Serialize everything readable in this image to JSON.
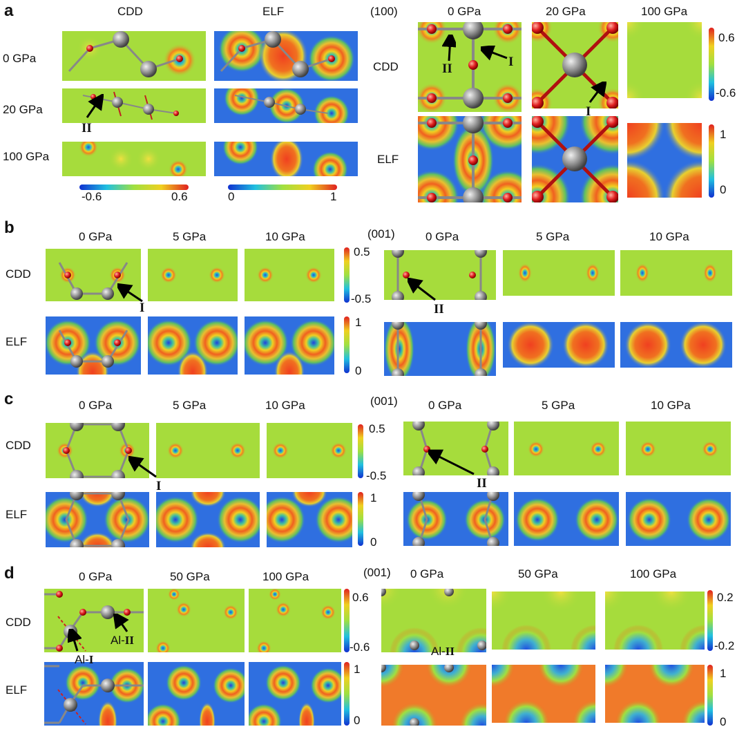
{
  "panels": {
    "a": {
      "letter": "a",
      "left_cols": [
        "CDD",
        "ELF"
      ],
      "left_rows": [
        "0 GPa",
        "20 GPa",
        "100 GPa"
      ],
      "cbar_cdd": {
        "min": "-0.6",
        "max": "0.6"
      },
      "cbar_elf": {
        "min": "0",
        "max": "1"
      },
      "right_plane": "(100)",
      "right_cols": [
        "0 GPa",
        "20 GPa",
        "100 GPa"
      ],
      "right_rows": [
        "CDD",
        "ELF"
      ],
      "right_cbar_cdd": {
        "max": "0.6",
        "min": "-0.6"
      },
      "right_cbar_elf": {
        "max": "1",
        "min": "0"
      },
      "marks": {
        "II_top": "II",
        "I_top": "I",
        "I_20": "I",
        "II_left": "II"
      }
    },
    "b": {
      "letter": "b",
      "cols": [
        "0 GPa",
        "5 GPa",
        "10 GPa"
      ],
      "rows": [
        "CDD",
        "ELF"
      ],
      "cbar_cdd": {
        "max": "0.5",
        "min": "-0.5"
      },
      "cbar_elf": {
        "max": "1",
        "min": "0"
      },
      "right_plane": "(001)",
      "right_cols": [
        "0 GPa",
        "5 GPa",
        "10 GPa"
      ],
      "marks": {
        "I": "I",
        "II": "II"
      }
    },
    "c": {
      "letter": "c",
      "cols": [
        "0 GPa",
        "5 GPa",
        "10 GPa"
      ],
      "rows": [
        "CDD",
        "ELF"
      ],
      "cbar_cdd": {
        "max": "0.5",
        "min": "-0.5"
      },
      "cbar_elf": {
        "max": "1",
        "min": "0"
      },
      "right_plane": "(001)",
      "right_cols": [
        "0 GPa",
        "5 GPa",
        "10 GPa"
      ],
      "marks": {
        "I": "I",
        "II": "II"
      }
    },
    "d": {
      "letter": "d",
      "cols": [
        "0 GPa",
        "50 GPa",
        "100 GPa"
      ],
      "rows": [
        "CDD",
        "ELF"
      ],
      "cbar_cdd": {
        "max": "0.6",
        "min": "-0.6"
      },
      "cbar_elf": {
        "max": "1",
        "min": "0"
      },
      "right_plane": "(001)",
      "right_cols": [
        "0 GPa",
        "50 GPa",
        "100 GPa"
      ],
      "right_cbar_cdd": {
        "max": "0.2",
        "min": "-0.2"
      },
      "right_cbar_elf": {
        "max": "1",
        "min": "0"
      },
      "marks": {
        "al1_prefix": "Al-",
        "al1_roman": "I",
        "al2_prefix": "Al-",
        "al2_roman": "II",
        "al2b_prefix": "Al-",
        "al2b_roman": "II"
      }
    }
  },
  "colors": {
    "cdd_bg": "#a6dc3c",
    "elf_bg": "#2f6fe0",
    "atom_o": "#e02020",
    "atom_al": "#8a8a8a",
    "elf_hot": "#f04020"
  }
}
